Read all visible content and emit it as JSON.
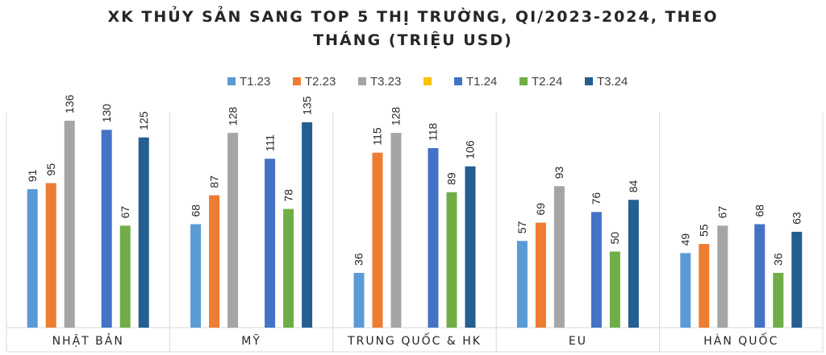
{
  "chart_data": {
    "type": "bar",
    "title_line1": "XK THỦY SẢN SANG TOP 5 THỊ TRƯỜNG, QI/2023-2024, THEO",
    "title_line2": "THÁNG (TRIỆU USD)",
    "categories": [
      "NHẬT BẢN",
      "MỸ",
      "TRUNG QUỐC & HK",
      "EU",
      "HÀN QUỐC"
    ],
    "series": [
      {
        "name": "T1.23",
        "color": "#5B9BD5",
        "values": [
          91,
          68,
          36,
          57,
          49
        ]
      },
      {
        "name": "T2.23",
        "color": "#ED7D31",
        "values": [
          95,
          87,
          115,
          69,
          55
        ]
      },
      {
        "name": "T3.23",
        "color": "#A5A5A5",
        "values": [
          136,
          128,
          128,
          93,
          67
        ]
      },
      {
        "name": "",
        "color": "#FFC000",
        "values": [
          null,
          null,
          null,
          null,
          null
        ]
      },
      {
        "name": "T1.24",
        "color": "#4472C4",
        "values": [
          130,
          111,
          118,
          76,
          68
        ]
      },
      {
        "name": "T2.24",
        "color": "#70AD47",
        "values": [
          67,
          78,
          89,
          50,
          36
        ]
      },
      {
        "name": "T3.24",
        "color": "#255E91",
        "values": [
          125,
          135,
          106,
          84,
          63
        ]
      }
    ],
    "ylim": [
      0,
      150
    ],
    "legend_position": "top",
    "gridlines": false
  }
}
